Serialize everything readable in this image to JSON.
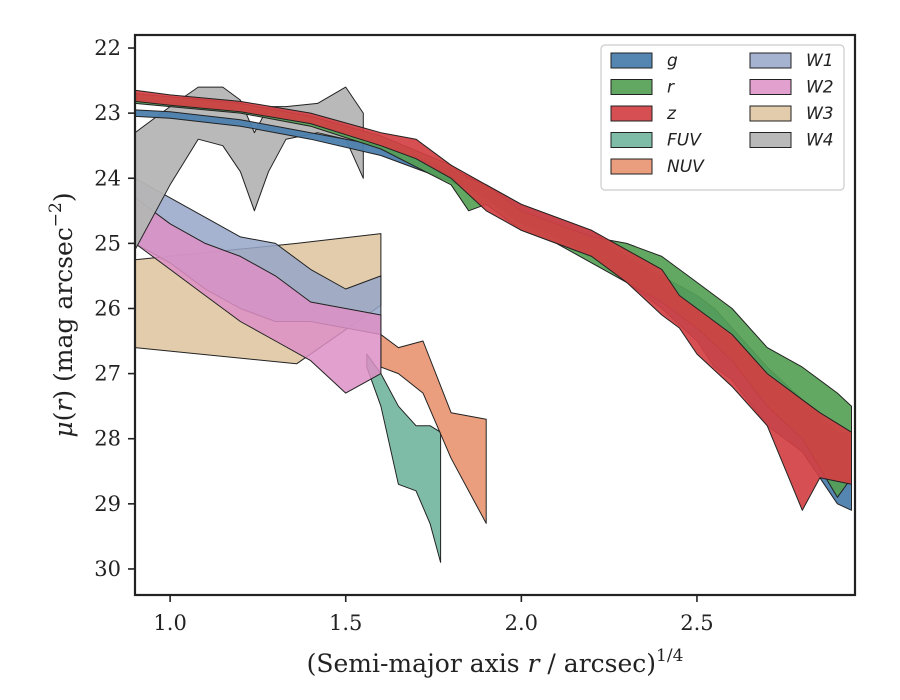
{
  "chart_data": {
    "type": "area",
    "xlabel_main": "(Semi-major axis ",
    "xlabel_var": "r",
    "xlabel_rest": " / arcsec)",
    "xlabel_exp": "1/4",
    "ylabel_mu": "μ",
    "ylabel_paren": "(",
    "ylabel_r": "r",
    "ylabel_rest": ") (mag arcsec",
    "ylabel_exp": "−2",
    "ylabel_close": ")",
    "xlim": [
      0.9,
      2.95
    ],
    "ylim": [
      30.4,
      21.8
    ],
    "y_inverted": true,
    "xticks": [
      1.0,
      1.5,
      2.0,
      2.5
    ],
    "xtick_labels": [
      "1.0",
      "1.5",
      "2.0",
      "2.5"
    ],
    "yticks": [
      22,
      23,
      24,
      25,
      26,
      27,
      28,
      29,
      30
    ],
    "ytick_labels": [
      "22",
      "23",
      "24",
      "25",
      "26",
      "27",
      "28",
      "29",
      "30"
    ],
    "grid": false,
    "legend_placement": "top-right",
    "legend_columns": 2,
    "series": [
      {
        "name": "W3",
        "color": "#dfc7a2",
        "opacity": 0.9,
        "band": [
          [
            0.9,
            25.25,
            26.6
          ],
          [
            1.36,
            25.0,
            26.85
          ],
          [
            1.6,
            24.85,
            25.95
          ]
        ]
      },
      {
        "name": "FUV",
        "color": "#6db39c",
        "opacity": 0.88,
        "band": [
          [
            1.56,
            26.7,
            26.9
          ],
          [
            1.6,
            27.0,
            27.5
          ],
          [
            1.65,
            27.5,
            28.7
          ],
          [
            1.7,
            27.8,
            28.8
          ],
          [
            1.74,
            27.8,
            29.3
          ],
          [
            1.77,
            27.9,
            29.9
          ]
        ]
      },
      {
        "name": "NUV",
        "color": "#e8916c",
        "opacity": 0.88,
        "band": [
          [
            1.6,
            26.4,
            26.9
          ],
          [
            1.65,
            26.6,
            27.0
          ],
          [
            1.72,
            26.5,
            27.3
          ],
          [
            1.8,
            27.6,
            28.3
          ],
          [
            1.9,
            27.7,
            29.3
          ]
        ]
      },
      {
        "name": "W1",
        "color": "#95a6c8",
        "opacity": 0.85,
        "band": [
          [
            0.9,
            24.0,
            25.0
          ],
          [
            1.0,
            24.3,
            25.3
          ],
          [
            1.1,
            24.6,
            25.7
          ],
          [
            1.2,
            24.9,
            26.0
          ],
          [
            1.3,
            25.0,
            26.2
          ],
          [
            1.4,
            25.4,
            26.2
          ],
          [
            1.5,
            25.7,
            26.3
          ],
          [
            1.6,
            25.5,
            26.4
          ]
        ]
      },
      {
        "name": "W2",
        "color": "#dd8fc6",
        "opacity": 0.85,
        "band": [
          [
            0.9,
            24.3,
            25.0
          ],
          [
            1.0,
            24.7,
            25.4
          ],
          [
            1.1,
            25.0,
            25.8
          ],
          [
            1.2,
            25.2,
            26.2
          ],
          [
            1.3,
            25.5,
            26.5
          ],
          [
            1.4,
            25.9,
            26.8
          ],
          [
            1.5,
            26.0,
            27.3
          ],
          [
            1.6,
            26.1,
            27.0
          ]
        ]
      },
      {
        "name": "W4",
        "color": "#b5b5b5",
        "opacity": 0.95,
        "band": [
          [
            0.9,
            23.3,
            25.1
          ],
          [
            1.0,
            22.9,
            24.1
          ],
          [
            1.08,
            22.6,
            23.4
          ],
          [
            1.15,
            22.6,
            23.5
          ],
          [
            1.2,
            22.8,
            23.9
          ],
          [
            1.24,
            23.3,
            24.5
          ],
          [
            1.28,
            22.9,
            23.9
          ],
          [
            1.33,
            22.9,
            23.4
          ],
          [
            1.42,
            22.85,
            23.3
          ],
          [
            1.5,
            22.6,
            23.4
          ],
          [
            1.55,
            23.0,
            24.0
          ]
        ]
      },
      {
        "name": "g",
        "color": "#4c7fae",
        "opacity": 0.95,
        "band": [
          [
            0.9,
            22.95,
            23.05
          ],
          [
            1.0,
            22.98,
            23.08
          ],
          [
            1.2,
            23.1,
            23.2
          ],
          [
            1.4,
            23.3,
            23.4
          ],
          [
            1.6,
            23.5,
            23.65
          ],
          [
            1.8,
            23.85,
            24.05
          ],
          [
            1.9,
            24.1,
            24.3
          ],
          [
            2.0,
            24.4,
            24.7
          ],
          [
            2.1,
            24.6,
            24.9
          ],
          [
            2.2,
            24.8,
            25.2
          ],
          [
            2.3,
            25.2,
            25.6
          ],
          [
            2.4,
            25.5,
            26.0
          ],
          [
            2.5,
            25.8,
            26.5
          ],
          [
            2.55,
            26.0,
            26.9
          ],
          [
            2.6,
            26.3,
            27.1
          ],
          [
            2.7,
            26.9,
            27.8
          ],
          [
            2.8,
            27.4,
            28.2
          ],
          [
            2.9,
            27.9,
            29.0
          ],
          [
            2.94,
            27.9,
            29.1
          ]
        ]
      },
      {
        "name": "r",
        "color": "#55a055",
        "opacity": 0.92,
        "band": [
          [
            0.9,
            22.7,
            22.85
          ],
          [
            1.0,
            22.75,
            22.9
          ],
          [
            1.2,
            22.85,
            23.0
          ],
          [
            1.4,
            23.05,
            23.2
          ],
          [
            1.6,
            23.35,
            23.55
          ],
          [
            1.8,
            23.8,
            24.1
          ],
          [
            1.85,
            24.0,
            24.5
          ],
          [
            1.9,
            24.1,
            24.4
          ],
          [
            2.0,
            24.5,
            24.8
          ],
          [
            2.1,
            24.7,
            25.0
          ],
          [
            2.2,
            24.9,
            25.3
          ],
          [
            2.3,
            25.0,
            25.6
          ],
          [
            2.4,
            25.2,
            25.9
          ],
          [
            2.5,
            25.6,
            26.3
          ],
          [
            2.6,
            26.0,
            26.8
          ],
          [
            2.7,
            26.6,
            27.5
          ],
          [
            2.8,
            26.9,
            28.0
          ],
          [
            2.9,
            27.3,
            28.9
          ],
          [
            2.94,
            27.5,
            28.6
          ]
        ]
      },
      {
        "name": "z",
        "color": "#d24043",
        "opacity": 0.92,
        "band": [
          [
            0.9,
            22.65,
            22.82
          ],
          [
            1.0,
            22.72,
            22.88
          ],
          [
            1.2,
            22.82,
            22.98
          ],
          [
            1.4,
            23.0,
            23.16
          ],
          [
            1.6,
            23.3,
            23.5
          ],
          [
            1.7,
            23.4,
            23.7
          ],
          [
            1.8,
            23.8,
            24.0
          ],
          [
            1.9,
            24.1,
            24.5
          ],
          [
            2.0,
            24.4,
            24.8
          ],
          [
            2.1,
            24.6,
            25.0
          ],
          [
            2.2,
            24.8,
            25.2
          ],
          [
            2.3,
            25.1,
            25.6
          ],
          [
            2.4,
            25.4,
            26.1
          ],
          [
            2.45,
            25.8,
            26.3
          ],
          [
            2.5,
            26.0,
            26.7
          ],
          [
            2.6,
            26.4,
            27.2
          ],
          [
            2.7,
            27.0,
            27.8
          ],
          [
            2.8,
            27.4,
            29.1
          ],
          [
            2.85,
            27.6,
            28.6
          ],
          [
            2.94,
            27.9,
            28.7
          ]
        ]
      }
    ]
  }
}
